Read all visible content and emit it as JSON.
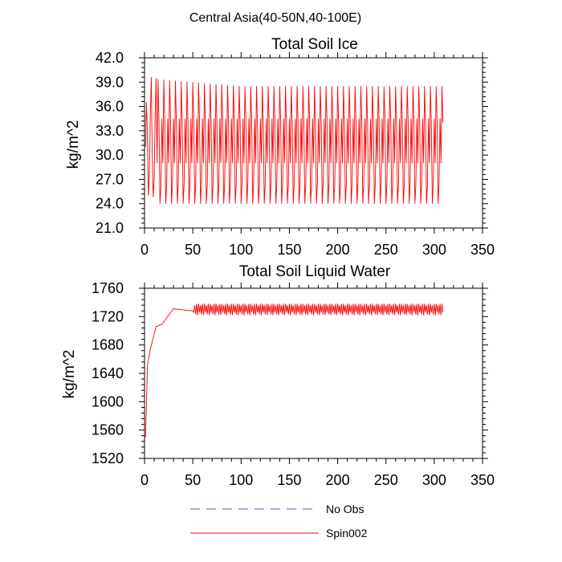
{
  "figure_title": "Central Asia(40-50N,40-100E)",
  "legend": [
    {
      "label": "No Obs",
      "style": "dashed",
      "color": "#5555cc"
    },
    {
      "label": "Spin002",
      "style": "solid",
      "color": "#ff0000"
    }
  ],
  "chart_data": [
    {
      "type": "line",
      "title": "Total Soil Ice",
      "xlabel": "",
      "ylabel": "kg/m^2",
      "xlim": [
        0,
        350
      ],
      "ylim": [
        21.0,
        42.0
      ],
      "xticks": [
        0,
        50,
        100,
        150,
        200,
        250,
        300,
        350
      ],
      "yticks": [
        "21.0",
        "24.0",
        "27.0",
        "30.0",
        "33.0",
        "36.0",
        "39.0",
        "42.0"
      ],
      "grid": false,
      "series": [
        {
          "name": "No Obs",
          "values": []
        },
        {
          "name": "Spin002",
          "period": 6,
          "x_start": 1,
          "x_end": 309,
          "cycle_profile": [
            {
              "x": 1,
              "y": 31.0
            },
            {
              "x": 2,
              "y": 36.5
            },
            {
              "x": 3,
              "y": 32.5
            },
            {
              "x": 4,
              "y": 25.0
            },
            {
              "x": 5,
              "y": 27.5
            },
            {
              "x": 6,
              "y": 35.0
            },
            {
              "x": 7,
              "y": 39.6
            },
            {
              "x": 8,
              "y": 30.0
            },
            {
              "x": 9,
              "y": 24.8
            },
            {
              "x": 10,
              "y": 27.0
            },
            {
              "x": 11,
              "y": 35.0
            },
            {
              "x": 12,
              "y": 39.5
            },
            {
              "x": 100,
              "y": 38.8
            },
            {
              "x": 200,
              "y": 38.5
            },
            {
              "x": 300,
              "y": 38.4
            }
          ],
          "cycle_peak": 38.5,
          "cycle_trough": 24.0,
          "cycle_mid_high": 34.0,
          "cycle_mid_low": 29.0
        }
      ]
    },
    {
      "type": "line",
      "title": "Total Soil Liquid Water",
      "xlabel": "",
      "ylabel": "kg/m^2",
      "xlim": [
        0,
        350
      ],
      "ylim": [
        1520,
        1760
      ],
      "xticks": [
        0,
        50,
        100,
        150,
        200,
        250,
        300,
        350
      ],
      "yticks": [
        "1520",
        "1560",
        "1600",
        "1640",
        "1680",
        "1720",
        "1760"
      ],
      "grid": false,
      "series": [
        {
          "name": "No Obs",
          "values": []
        },
        {
          "name": "Spin002",
          "period": 6,
          "x_start": 1,
          "x_end": 309,
          "spinup": [
            {
              "x": 1,
              "y": 1550
            },
            {
              "x": 2,
              "y": 1600
            },
            {
              "x": 3,
              "y": 1645
            },
            {
              "x": 6,
              "y": 1680
            },
            {
              "x": 12,
              "y": 1700
            },
            {
              "x": 18,
              "y": 1715
            },
            {
              "x": 30,
              "y": 1725
            },
            {
              "x": 50,
              "y": 1728
            }
          ],
          "steady_high": 1738,
          "steady_low": 1722
        }
      ]
    }
  ]
}
